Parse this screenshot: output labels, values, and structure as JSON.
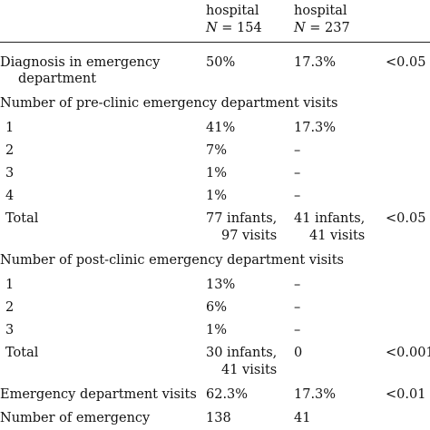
{
  "header": {
    "col1_line1": "hospital",
    "col1_n_label": "N",
    "col1_n_value": " = 154",
    "col2_line1": "hospital",
    "col2_n_label": "N",
    "col2_n_value": " = 237"
  },
  "rows": {
    "diagnosis": {
      "label_line1": "Diagnosis in emergency",
      "label_line2": "department",
      "v1": "50%",
      "v2": "17.3%",
      "p": "<0.05"
    },
    "pre_heading": "Number of pre-clinic emergency department visits",
    "pre": [
      {
        "label": "1",
        "v1": "41%",
        "v2": "17.3%"
      },
      {
        "label": "2",
        "v1": "7%",
        "v2": "–"
      },
      {
        "label": "3",
        "v1": "1%",
        "v2": "–"
      },
      {
        "label": "4",
        "v1": "1%",
        "v2": "–"
      }
    ],
    "pre_total": {
      "label": "Total",
      "v1_line1": "77 infants,",
      "v1_line2": "97 visits",
      "v2_line1": "41 infants,",
      "v2_line2": "41 visits",
      "p": "<0.05"
    },
    "post_heading": "Number of post-clinic emergency department visits",
    "post": [
      {
        "label": "1",
        "v1": "13%",
        "v2": "–"
      },
      {
        "label": "2",
        "v1": "6%",
        "v2": "–"
      },
      {
        "label": "3",
        "v1": "1%",
        "v2": "–"
      }
    ],
    "post_total": {
      "label": "Total",
      "v1_line1": "30 infants,",
      "v1_line2": "41 visits",
      "v2": "0",
      "p": "<0.001"
    },
    "ed_visits": {
      "label": "Emergency department visits",
      "v1": "62.3%",
      "v2": "17.3%",
      "p": "<0.01"
    },
    "num_emergency": {
      "label": "Number of emergency",
      "v1": "138",
      "v2": "41"
    }
  }
}
